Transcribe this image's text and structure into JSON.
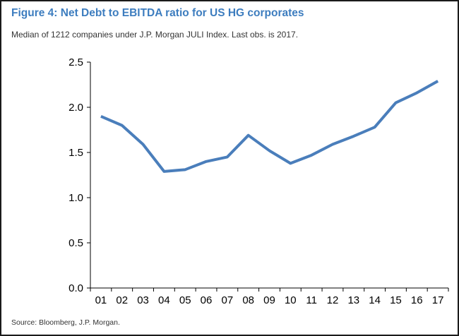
{
  "title": "Figure 4: Net Debt to EBITDA ratio for US HG corporates",
  "subtitle": "Median of 1212 companies under J.P. Morgan JULI Index. Last obs. is 2017.",
  "source": "Source: Bloomberg, J.P. Morgan.",
  "chart_data": {
    "type": "line",
    "categories": [
      "01",
      "02",
      "03",
      "04",
      "05",
      "06",
      "07",
      "08",
      "09",
      "10",
      "11",
      "12",
      "13",
      "14",
      "15",
      "16",
      "17"
    ],
    "values": [
      1.9,
      1.8,
      1.59,
      1.29,
      1.31,
      1.4,
      1.45,
      1.69,
      1.52,
      1.38,
      1.47,
      1.59,
      1.68,
      1.78,
      2.05,
      2.16,
      2.29
    ],
    "yticks": [
      "0.0",
      "0.5",
      "1.0",
      "1.5",
      "2.0",
      "2.5"
    ],
    "ylim": [
      0,
      2.5
    ],
    "grid": false,
    "line_color": "#4a7ebb"
  }
}
